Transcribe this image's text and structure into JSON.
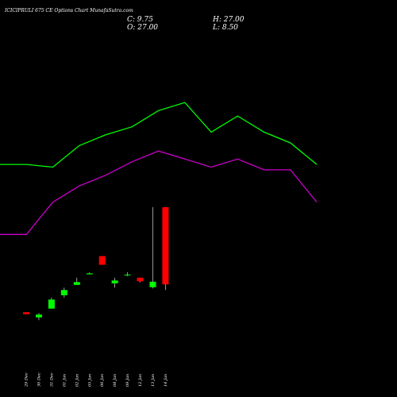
{
  "chart_data": {
    "type": "candlestick",
    "title": "ICICIPRULI 675 CE Options  Chart MunafaSutra.com",
    "ohlc_readout": {
      "close": "C: 9.75",
      "open": "O: 27.00",
      "high": "H: 27.00",
      "low": "L: 8.50"
    },
    "x_labels": [
      "29 Dec",
      "30 Dec",
      "31 Dec",
      "01 Jan",
      "02 Jan",
      "05 Jan",
      "06 Jan",
      "08 Jan",
      "09 Jan",
      "12 Jan",
      "13 Jan",
      "14 Jan"
    ],
    "candles": [
      {
        "date": "29 Dec",
        "open": 3.54,
        "high": 3.54,
        "low": 3.1,
        "close": 3.1
      },
      {
        "date": "30 Dec",
        "open": 2.39,
        "high": 3.37,
        "low": 1.77,
        "close": 3.01
      },
      {
        "date": "31 Dec",
        "open": 4.34,
        "high": 6.82,
        "low": 4.34,
        "close": 6.37
      },
      {
        "date": "01 Jan",
        "open": 7.35,
        "high": 9.03,
        "low": 6.82,
        "close": 8.5
      },
      {
        "date": "02 Jan",
        "open": 9.65,
        "high": 11.24,
        "low": 9.65,
        "close": 10.27
      },
      {
        "date": "05 Jan",
        "open": 12.01,
        "high": 12.45,
        "low": 12.01,
        "close": 12.22
      },
      {
        "date": "06 Jan",
        "open": 16.09,
        "high": 16.09,
        "low": 14.14,
        "close": 14.14
      },
      {
        "date": "08 Jan",
        "open": 10.0,
        "high": 11.24,
        "low": 9.03,
        "close": 10.62
      },
      {
        "date": "09 Jan",
        "open": 11.95,
        "high": 12.45,
        "low": 11.59,
        "close": 11.95
      },
      {
        "date": "12 Jan",
        "open": 11.24,
        "high": 11.24,
        "low": 10.18,
        "close": 10.44
      },
      {
        "date": "13 Jan",
        "open": 9.12,
        "high": 27.0,
        "low": 8.85,
        "close": 10.35
      },
      {
        "date": "14 Jan",
        "open": 27.0,
        "high": 27.0,
        "low": 8.5,
        "close": 9.75
      }
    ],
    "series": [
      {
        "values": [
          26.0,
          26.0,
          25.5,
          29.5,
          31.5,
          33.0,
          36.0,
          37.5,
          32.0,
          35.0,
          32.0,
          30.0,
          26.0
        ]
      },
      {
        "values": [
          13.0,
          13.0,
          19.0,
          22.0,
          24.0,
          26.5,
          28.5,
          27.0,
          25.5,
          27.0,
          25.0,
          25.0,
          19.0
        ]
      }
    ],
    "colors": {
      "background": "#000000",
      "up_candle": "#00ff00",
      "down_candle": "#ff0000",
      "line_upper": "#00ff00",
      "line_lower": "#cc00cc",
      "text": "#ffffff",
      "wick": "#ffffff"
    }
  }
}
